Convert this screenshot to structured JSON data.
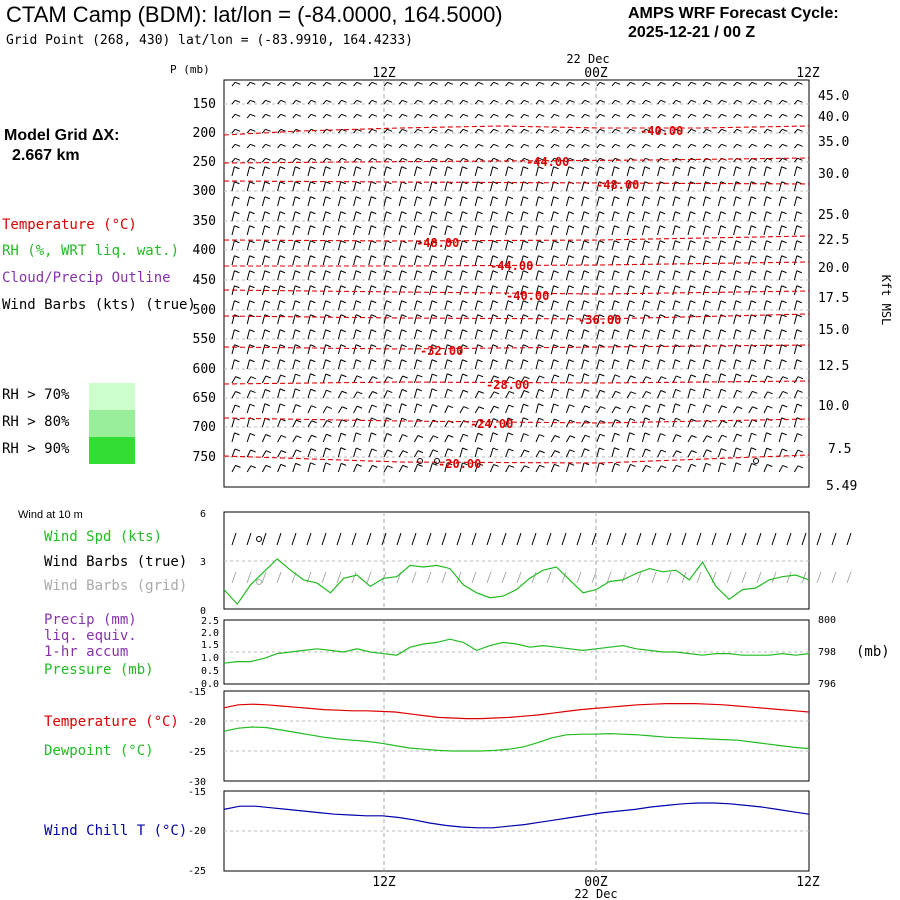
{
  "header": {
    "title": "CTAM Camp (BDM):  lat/lon = (-84.0000, 164.5000)",
    "subtitle": "Grid Point (268, 430) lat/lon = (-83.9910, 164.4233)",
    "forecast_line1": "AMPS WRF Forecast Cycle:",
    "forecast_line2": "2025-12-21 / 00  Z",
    "grid_line1": "Model Grid ΔX:",
    "grid_line2": "2.667 km"
  },
  "legend": {
    "temperature": "Temperature (°C)",
    "rh": "RH (%, WRT liq. wat.)",
    "cloud": "Cloud/Precip Outline",
    "wind_barbs": "Wind Barbs (kts) (true)",
    "rh70": "RH > 70%",
    "rh80": "RH > 80%",
    "rh90": "RH > 90%",
    "wind10m": "Wind at 10 m",
    "wind_spd": "Wind Spd (kts)",
    "barbs_true": "Wind Barbs (true)",
    "barbs_grid": "Wind Barbs (grid)",
    "precip1": "Precip (mm)",
    "precip2": "liq. equiv.",
    "precip3": "1-hr accum",
    "pressure": "Pressure (mb)",
    "temp2": "Temperature (°C)",
    "dewpoint": "Dewpoint (°C)",
    "windchill": "Wind Chill T (°C)"
  },
  "colors": {
    "temperature": "#dd0000",
    "rh": "#22bb22",
    "cloud": "#8833aa",
    "grid_barbs": "#aaaaaa",
    "windchill": "#0000aa",
    "rh70": "#ccffcc",
    "rh80": "#99ee99",
    "rh90": "#33dd33"
  },
  "chart_data": [
    {
      "type": "line",
      "name": "pressure-height-cross-section",
      "y_axis_label": "P (mb)",
      "y_ticks": [
        "150",
        "200",
        "250",
        "300",
        "350",
        "400",
        "450",
        "500",
        "550",
        "600",
        "650",
        "700",
        "750"
      ],
      "right_axis_label": "Kft MSL",
      "right_ticks": [
        "45.0",
        "40.0",
        "35.0",
        "30.0",
        "25.0",
        "22.5",
        "20.0",
        "17.5",
        "15.0",
        "12.5",
        "10.0",
        "7.5",
        "5.49"
      ],
      "top_ticks": [
        "12Z",
        "00Z",
        "12Z"
      ],
      "top_date": "22 Dec",
      "temperature_contour_labels": [
        "-40.00",
        "-44.00",
        "-48.00",
        "-48.00",
        "-44.00",
        "-40.00",
        "-36.00",
        "-32.00",
        "-28.00",
        "-24.00",
        "-20.00"
      ]
    },
    {
      "type": "line",
      "name": "wind-10m",
      "yticks": [
        "6",
        "3",
        "0"
      ],
      "series": [
        {
          "name": "Wind Spd (kts)",
          "values": [
            1.2,
            0.3,
            1.5,
            2.3,
            3.1,
            2.4,
            1.8,
            1.6,
            1.0,
            1.9,
            2.1,
            1.4,
            1.9,
            2.0,
            2.7,
            2.6,
            2.7,
            2.5,
            1.5,
            1.0,
            0.7,
            0.8,
            1.2,
            1.9,
            2.4,
            2.6,
            1.8,
            1.0,
            1.2,
            1.7,
            1.8,
            2.2,
            2.5,
            2.3,
            2.4,
            1.8,
            2.9,
            1.4,
            0.6,
            1.2,
            1.3,
            1.8,
            2.0,
            2.1,
            1.8
          ]
        }
      ]
    },
    {
      "type": "line",
      "name": "precip-pressure",
      "left_ticks": [
        "2.5",
        "2.0",
        "1.5",
        "1.0",
        "0.5",
        "0.0"
      ],
      "right_ticks": [
        "800",
        "798",
        "796"
      ],
      "right_unit": "(mb)",
      "series": [
        {
          "name": "Pressure (mb)",
          "values": [
            797.3,
            797.4,
            797.4,
            797.6,
            797.9,
            798.0,
            798.1,
            798.2,
            798.1,
            798.0,
            798.2,
            798.0,
            797.9,
            797.8,
            798.3,
            798.5,
            798.6,
            798.8,
            798.6,
            798.1,
            798.4,
            798.6,
            798.5,
            798.3,
            798.4,
            798.3,
            798.2,
            798.1,
            798.2,
            798.3,
            798.4,
            798.2,
            798.1,
            798.0,
            798.0,
            797.9,
            797.8,
            797.9,
            797.9,
            797.8,
            797.8,
            797.8,
            797.9,
            797.8,
            797.9
          ]
        }
      ]
    },
    {
      "type": "line",
      "name": "temperature-dewpoint",
      "yticks": [
        "-15",
        "-20",
        "-25",
        "-30"
      ],
      "ylim": [
        -30,
        -15
      ],
      "series": [
        {
          "name": "Temperature (°C)",
          "values": [
            -17.8,
            -17.3,
            -17.2,
            -17.3,
            -17.5,
            -17.7,
            -17.9,
            -18.1,
            -18.2,
            -18.3,
            -18.3,
            -18.4,
            -18.5,
            -18.8,
            -19.1,
            -19.4,
            -19.5,
            -19.6,
            -19.6,
            -19.5,
            -19.4,
            -19.2,
            -19.0,
            -18.7,
            -18.4,
            -18.1,
            -17.9,
            -17.7,
            -17.5,
            -17.3,
            -17.2,
            -17.1,
            -17.1,
            -17.1,
            -17.2,
            -17.3,
            -17.5,
            -17.7,
            -17.9,
            -18.1,
            -18.3,
            -18.5
          ]
        },
        {
          "name": "Dewpoint (°C)",
          "values": [
            -21.7,
            -21.2,
            -21.0,
            -21.1,
            -21.5,
            -21.9,
            -22.3,
            -22.7,
            -23.0,
            -23.2,
            -23.4,
            -23.7,
            -24.1,
            -24.5,
            -24.7,
            -24.9,
            -25.0,
            -25.0,
            -25.0,
            -24.9,
            -24.7,
            -24.3,
            -23.6,
            -22.8,
            -22.3,
            -22.2,
            -22.2,
            -22.1,
            -22.2,
            -22.3,
            -22.5,
            -22.7,
            -22.8,
            -22.9,
            -23.0,
            -23.1,
            -23.2,
            -23.5,
            -23.8,
            -24.1,
            -24.4,
            -24.6
          ]
        }
      ]
    },
    {
      "type": "line",
      "name": "wind-chill",
      "yticks": [
        "-15",
        "-20",
        "-25"
      ],
      "ylim": [
        -25,
        -15
      ],
      "series": [
        {
          "name": "Wind Chill T (°C)",
          "values": [
            -17.3,
            -16.9,
            -16.9,
            -17.1,
            -17.3,
            -17.5,
            -17.7,
            -17.9,
            -18.0,
            -18.1,
            -18.1,
            -18.3,
            -18.6,
            -19.0,
            -19.3,
            -19.5,
            -19.6,
            -19.6,
            -19.4,
            -19.2,
            -18.9,
            -18.6,
            -18.3,
            -18.0,
            -17.7,
            -17.5,
            -17.3,
            -17.0,
            -16.8,
            -16.6,
            -16.5,
            -16.5,
            -16.6,
            -16.8,
            -17.0,
            -17.3,
            -17.6,
            -17.9
          ]
        }
      ]
    }
  ],
  "bottom_axis": {
    "ticks": [
      "12Z",
      "00Z",
      "12Z"
    ],
    "date": "22 Dec"
  }
}
